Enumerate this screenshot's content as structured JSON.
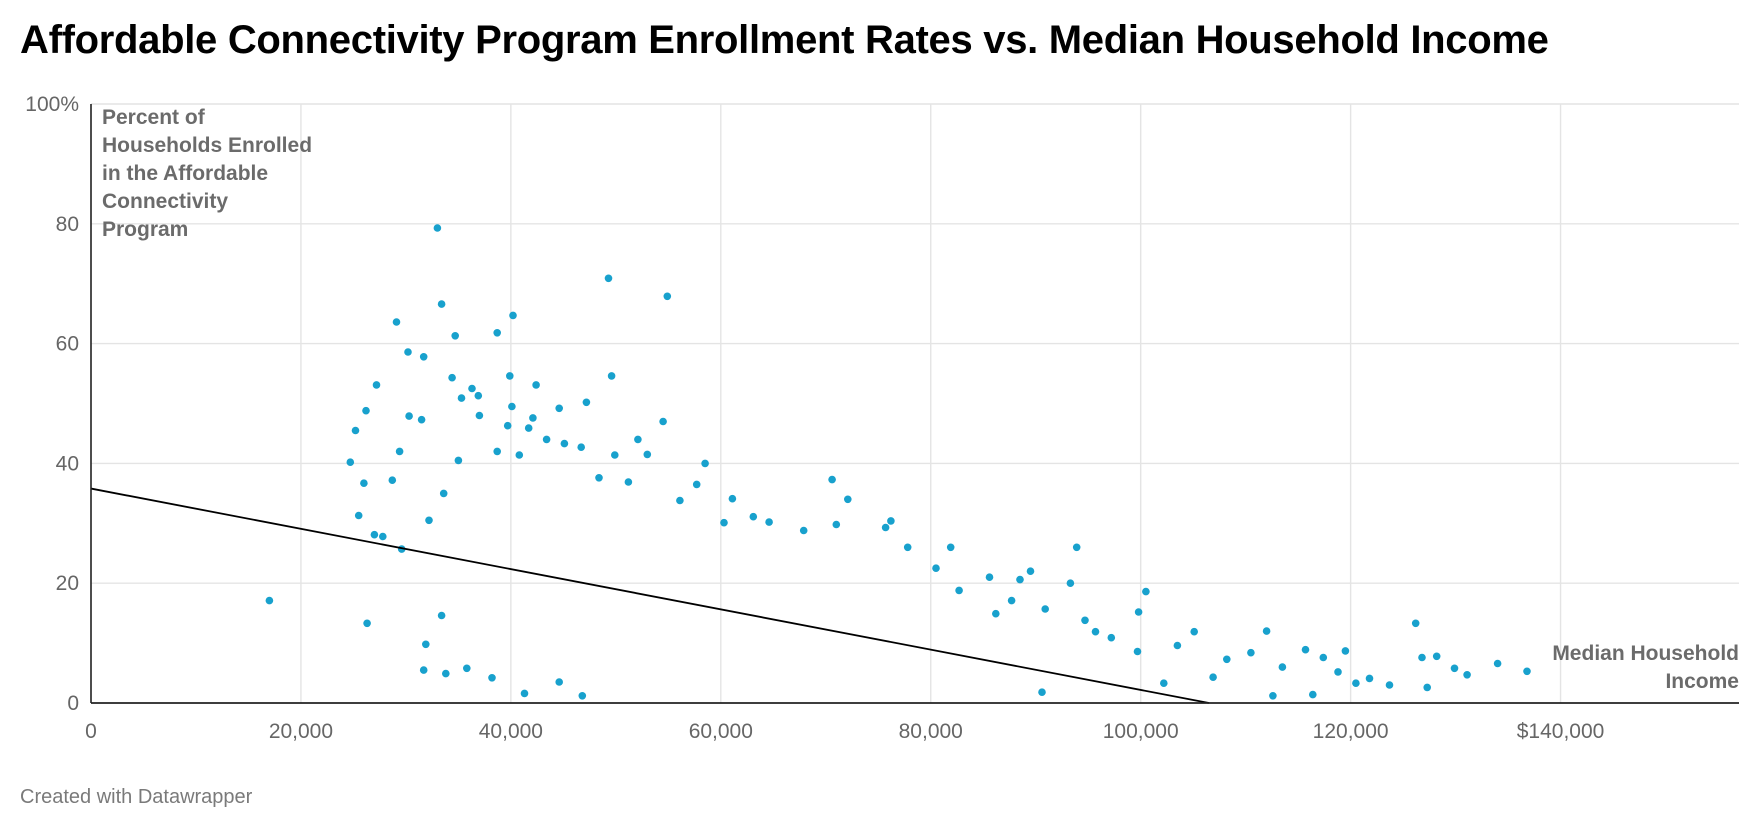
{
  "chart_data": {
    "type": "scatter",
    "title": "Affordable Connectivity Program Enrollment Rates vs. Median Household Income",
    "xlabel": "Median Household Income",
    "ylabel": "Percent of Households Enrolled in the Affordable Connectivity Program",
    "y_annotation_lines": [
      "Percent of",
      "Households Enrolled",
      "in the Affordable",
      "Connectivity",
      "Program"
    ],
    "x_annotation_lines": [
      "Median Household",
      "Income"
    ],
    "xlim": [
      0,
      157000
    ],
    "ylim": [
      0,
      100
    ],
    "x_ticks": [
      {
        "value": 0,
        "label": "0"
      },
      {
        "value": 20000,
        "label": "20,000"
      },
      {
        "value": 40000,
        "label": "40,000"
      },
      {
        "value": 60000,
        "label": "60,000"
      },
      {
        "value": 80000,
        "label": "80,000"
      },
      {
        "value": 100000,
        "label": "100,000"
      },
      {
        "value": 120000,
        "label": "120,000"
      },
      {
        "value": 140000,
        "label": "$140,000"
      }
    ],
    "y_ticks": [
      {
        "value": 0,
        "label": "0"
      },
      {
        "value": 20,
        "label": "20"
      },
      {
        "value": 40,
        "label": "40"
      },
      {
        "value": 60,
        "label": "60"
      },
      {
        "value": 80,
        "label": "80"
      },
      {
        "value": 100,
        "label": "100%"
      }
    ],
    "grid": true,
    "point_color": "#18a1cd",
    "trendline": {
      "color": "#000000",
      "points": [
        [
          0,
          35.8
        ],
        [
          106500,
          0
        ]
      ]
    },
    "points": [
      [
        17000,
        17.1
      ],
      [
        26300,
        13.3
      ],
      [
        25200,
        45.5
      ],
      [
        24700,
        40.2
      ],
      [
        25500,
        31.3
      ],
      [
        26000,
        36.7
      ],
      [
        27000,
        28.1
      ],
      [
        27200,
        53.1
      ],
      [
        26200,
        48.8
      ],
      [
        29100,
        63.6
      ],
      [
        33000,
        79.3
      ],
      [
        33400,
        66.6
      ],
      [
        30200,
        58.6
      ],
      [
        31700,
        57.8
      ],
      [
        34700,
        61.3
      ],
      [
        38700,
        61.8
      ],
      [
        40200,
        64.7
      ],
      [
        35300,
        50.9
      ],
      [
        39900,
        54.6
      ],
      [
        42400,
        53.1
      ],
      [
        47200,
        50.2
      ],
      [
        49300,
        70.9
      ],
      [
        49600,
        54.6
      ],
      [
        54900,
        67.9
      ],
      [
        54500,
        47.0
      ],
      [
        52100,
        44.0
      ],
      [
        53000,
        41.5
      ],
      [
        49900,
        41.4
      ],
      [
        58500,
        40.0
      ],
      [
        61100,
        34.1
      ],
      [
        70600,
        37.3
      ],
      [
        72100,
        34.0
      ],
      [
        76200,
        30.4
      ],
      [
        81900,
        26.0
      ],
      [
        93900,
        26.0
      ],
      [
        85600,
        21.0
      ],
      [
        88500,
        20.6
      ],
      [
        89500,
        22.0
      ],
      [
        93300,
        20.0
      ],
      [
        100500,
        18.6
      ],
      [
        99800,
        15.2
      ],
      [
        105100,
        11.9
      ],
      [
        112000,
        12.0
      ],
      [
        115700,
        8.9
      ],
      [
        119500,
        8.7
      ],
      [
        126200,
        13.3
      ],
      [
        126800,
        7.6
      ],
      [
        128200,
        7.8
      ],
      [
        129900,
        5.8
      ],
      [
        131100,
        4.7
      ],
      [
        134000,
        6.6
      ],
      [
        136800,
        5.3
      ],
      [
        120500,
        3.3
      ],
      [
        123700,
        3.0
      ],
      [
        127300,
        2.6
      ],
      [
        116400,
        1.4
      ],
      [
        112600,
        1.2
      ],
      [
        106900,
        4.3
      ],
      [
        102200,
        3.3
      ],
      [
        90600,
        1.8
      ],
      [
        31700,
        5.5
      ],
      [
        33800,
        4.9
      ],
      [
        31900,
        9.8
      ],
      [
        27800,
        27.8
      ],
      [
        29600,
        25.7
      ],
      [
        28700,
        37.2
      ],
      [
        29400,
        42.0
      ],
      [
        30300,
        47.9
      ],
      [
        31500,
        47.3
      ],
      [
        34400,
        54.3
      ],
      [
        36300,
        52.5
      ],
      [
        37000,
        48.0
      ],
      [
        36900,
        51.3
      ],
      [
        40100,
        49.5
      ],
      [
        39700,
        46.3
      ],
      [
        42100,
        47.6
      ],
      [
        44600,
        49.2
      ],
      [
        48400,
        37.6
      ],
      [
        51200,
        36.9
      ],
      [
        56100,
        33.8
      ],
      [
        57700,
        36.5
      ],
      [
        60300,
        30.1
      ],
      [
        63100,
        31.1
      ],
      [
        64600,
        30.2
      ],
      [
        67900,
        28.8
      ],
      [
        71000,
        29.8
      ],
      [
        75700,
        29.3
      ],
      [
        77800,
        26.0
      ],
      [
        80500,
        22.5
      ],
      [
        82700,
        18.8
      ],
      [
        86200,
        14.9
      ],
      [
        87700,
        17.1
      ],
      [
        90900,
        15.7
      ],
      [
        94700,
        13.8
      ],
      [
        95700,
        11.9
      ],
      [
        97200,
        10.9
      ],
      [
        99700,
        8.6
      ],
      [
        103500,
        9.6
      ],
      [
        108200,
        7.3
      ],
      [
        110500,
        8.4
      ],
      [
        113500,
        6.0
      ],
      [
        117400,
        7.6
      ],
      [
        118800,
        5.2
      ],
      [
        121800,
        4.1
      ],
      [
        41300,
        1.6
      ],
      [
        46800,
        1.2
      ],
      [
        44600,
        3.5
      ],
      [
        38200,
        4.2
      ],
      [
        35800,
        5.8
      ],
      [
        33400,
        14.6
      ],
      [
        32200,
        30.5
      ],
      [
        33600,
        35.0
      ],
      [
        35000,
        40.5
      ],
      [
        38700,
        42.0
      ],
      [
        40800,
        41.4
      ],
      [
        41700,
        45.9
      ],
      [
        43400,
        44.0
      ],
      [
        45100,
        43.3
      ],
      [
        46700,
        42.7
      ]
    ]
  },
  "footer": {
    "credit": "Created with Datawrapper"
  }
}
